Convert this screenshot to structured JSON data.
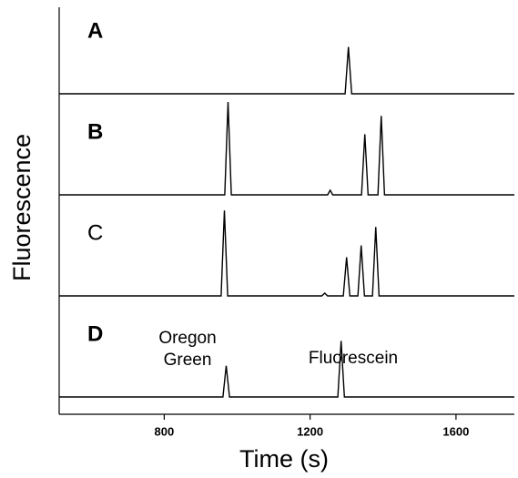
{
  "chart_data": {
    "type": "line",
    "x_label": "Time (s)",
    "y_label": "Fluorescence",
    "xlim": [
      512,
      1760
    ],
    "xticks": [
      800,
      1200,
      1600
    ],
    "ylim": [
      0,
      110
    ],
    "color": "#000000",
    "series": [
      {
        "name": "A",
        "bold": true,
        "x": [
          512,
          800,
          1200,
          1296,
          1305,
          1314,
          1500,
          1760
        ],
        "values": [
          0,
          0,
          0,
          0,
          51,
          0,
          0,
          0
        ]
      },
      {
        "name": "B",
        "bold": true,
        "x": [
          512,
          966,
          975,
          984,
          1248,
          1255,
          1262,
          1341,
          1350,
          1359,
          1386,
          1395,
          1404,
          1760
        ],
        "values": [
          0,
          0,
          101,
          0,
          0,
          5,
          0,
          0,
          66,
          0,
          0,
          86,
          0,
          0
        ]
      },
      {
        "name": "C",
        "bold": false,
        "x": [
          512,
          956,
          965,
          974,
          1232,
          1240,
          1248,
          1291,
          1300,
          1309,
          1331,
          1340,
          1349,
          1371,
          1380,
          1389,
          1760
        ],
        "values": [
          0,
          0,
          93,
          0,
          0,
          3,
          0,
          0,
          42,
          0,
          0,
          55,
          0,
          0,
          75,
          0,
          0
        ]
      },
      {
        "name": "D",
        "bold": true,
        "x": [
          512,
          961,
          970,
          979,
          1276,
          1285,
          1294,
          1760
        ],
        "values": [
          0,
          0,
          34,
          0,
          0,
          61,
          0,
          0
        ]
      }
    ],
    "annotations": [
      "Oregon",
      "Green",
      "Fluorescein"
    ]
  }
}
